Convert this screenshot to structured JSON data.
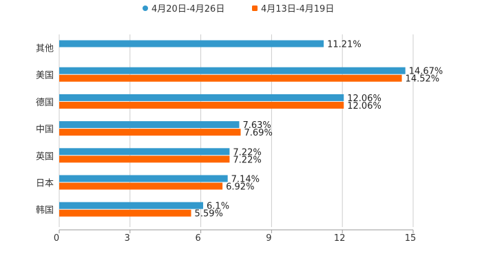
{
  "chart_data": {
    "type": "bar",
    "orientation": "horizontal",
    "categories": [
      "其他",
      "美国",
      "德国",
      "中国",
      "英国",
      "日本",
      "韩国"
    ],
    "series": [
      {
        "name": "4月20日-4月26日",
        "color": "#3399cc",
        "values": [
          11.21,
          14.67,
          12.06,
          7.63,
          7.22,
          7.14,
          6.1
        ],
        "labels": [
          "11.21%",
          "14.67%",
          "12.06%",
          "7.63%",
          "7.22%",
          "7.14%",
          "6.1%"
        ]
      },
      {
        "name": "4月13日-4月19日",
        "color": "#ff6600",
        "values": [
          null,
          14.52,
          12.06,
          7.69,
          7.22,
          6.92,
          5.59
        ],
        "labels": [
          null,
          "14.52%",
          "12.06%",
          "7.69%",
          "7.22%",
          "6.92%",
          "5.59%"
        ]
      }
    ],
    "xticks": [
      0,
      3,
      6,
      9,
      12,
      15
    ],
    "xlim": [
      0,
      15
    ],
    "title": "",
    "xlabel": "",
    "ylabel": "",
    "grid": true,
    "legend": "top-center"
  }
}
